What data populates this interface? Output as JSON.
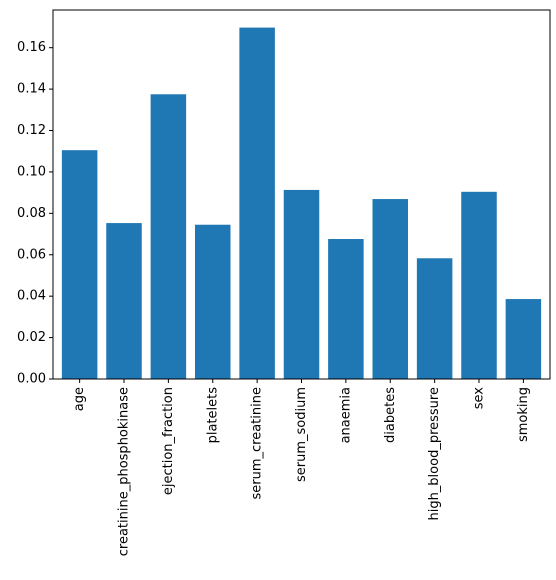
{
  "chart_data": {
    "type": "bar",
    "title": "",
    "xlabel": "",
    "ylabel": "",
    "categories": [
      "age",
      "creatinine_phosphokinase",
      "ejection_fraction",
      "platelets",
      "serum_creatinine",
      "serum_sodium",
      "anaemia",
      "diabetes",
      "high_blood_pressure",
      "sex",
      "smoking"
    ],
    "values": [
      0.1105,
      0.0753,
      0.1375,
      0.0745,
      0.1697,
      0.0913,
      0.0676,
      0.0869,
      0.0583,
      0.0904,
      0.0386
    ],
    "ylim": [
      0,
      0.1782
    ],
    "yticks": [
      0.0,
      0.02,
      0.04,
      0.06,
      0.08,
      0.1,
      0.12,
      0.14,
      0.16
    ],
    "ytick_labels": [
      "0.00",
      "0.02",
      "0.04",
      "0.06",
      "0.08",
      "0.10",
      "0.12",
      "0.14",
      "0.16"
    ],
    "bar_color": "#1f77b4",
    "grid": false,
    "legend": "none"
  }
}
